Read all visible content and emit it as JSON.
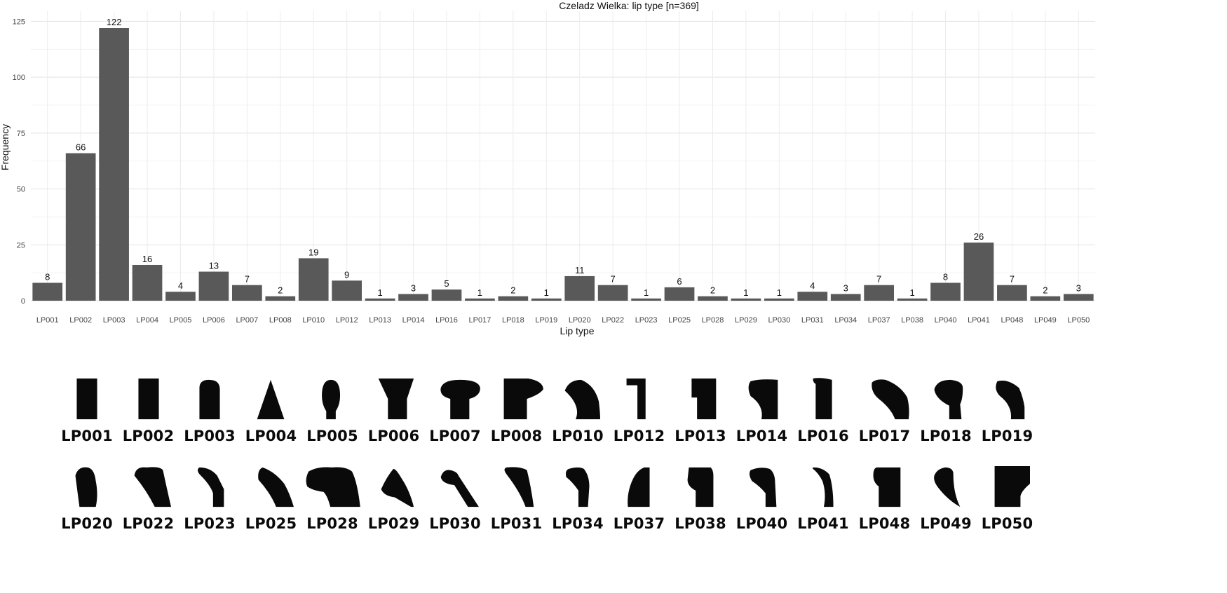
{
  "chart_data": {
    "type": "bar",
    "title": "Czeladz Wielka: lip type [n=369]",
    "xlabel": "Lip type",
    "ylabel": "Frequency",
    "ylim": [
      0,
      127
    ],
    "yticks": [
      0,
      25,
      50,
      75,
      100,
      125
    ],
    "grid": true,
    "bar_color": "#595959",
    "categories": [
      "LP001",
      "LP002",
      "LP003",
      "LP004",
      "LP005",
      "LP006",
      "LP007",
      "LP008",
      "LP010",
      "LP012",
      "LP013",
      "LP014",
      "LP016",
      "LP017",
      "LP018",
      "LP019",
      "LP020",
      "LP022",
      "LP023",
      "LP025",
      "LP028",
      "LP029",
      "LP030",
      "LP031",
      "LP034",
      "LP037",
      "LP038",
      "LP040",
      "LP041",
      "LP048",
      "LP049",
      "LP050"
    ],
    "values": [
      8,
      66,
      122,
      16,
      4,
      13,
      7,
      2,
      19,
      9,
      1,
      3,
      5,
      1,
      2,
      1,
      11,
      7,
      1,
      6,
      2,
      1,
      1,
      4,
      3,
      7,
      1,
      8,
      26,
      7,
      2,
      3
    ]
  },
  "lip_profiles": {
    "row1": [
      "LP001",
      "LP002",
      "LP003",
      "LP004",
      "LP005",
      "LP006",
      "LP007",
      "LP008",
      "LP010",
      "LP012",
      "LP013",
      "LP014",
      "LP016",
      "LP017",
      "LP018",
      "LP019"
    ],
    "row2": [
      "LP020",
      "LP022",
      "LP023",
      "LP025",
      "LP028",
      "LP029",
      "LP030",
      "LP031",
      "LP034",
      "LP037",
      "LP038",
      "LP040",
      "LP041",
      "LP048",
      "LP049",
      "LP050"
    ],
    "profile_color": "#0a0a0a"
  }
}
